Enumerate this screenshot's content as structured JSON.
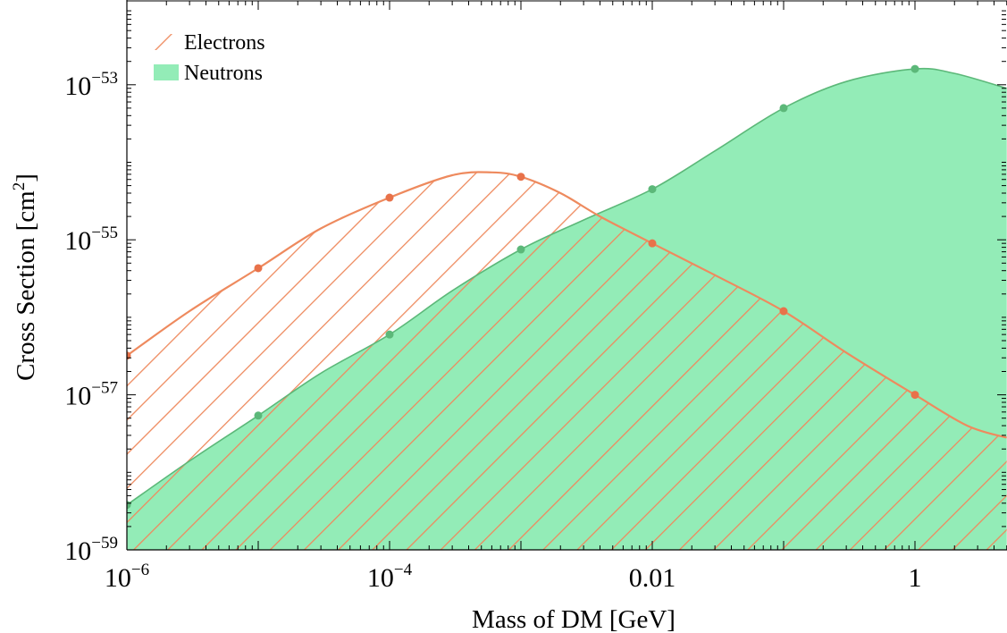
{
  "chart_data": {
    "type": "area",
    "title": "",
    "xlabel": "Mass of DM [GeV]",
    "ylabel_main": "Cross Section [cm",
    "ylabel_sup": "2",
    "ylabel_close": "]",
    "x_scale": "log",
    "y_scale": "log",
    "xlim": [
      1e-06,
      5
    ],
    "ylim": [
      1e-59,
      1e-52
    ],
    "x_ticks": [
      {
        "value": 1e-06,
        "base": "10",
        "exp": "−6"
      },
      {
        "value": 0.0001,
        "base": "10",
        "exp": "−4"
      },
      {
        "value": 0.01,
        "base": "0.01",
        "exp": ""
      },
      {
        "value": 1,
        "base": "1",
        "exp": ""
      }
    ],
    "y_ticks": [
      {
        "value": 1e-59,
        "base": "10",
        "exp": "−59"
      },
      {
        "value": 1e-57,
        "base": "10",
        "exp": "−57"
      },
      {
        "value": 1e-55,
        "base": "10",
        "exp": "−55"
      },
      {
        "value": 1e-53,
        "base": "10",
        "exp": "−53"
      }
    ],
    "grid": false,
    "legend_position": "top-left",
    "series": [
      {
        "name": "Electrons",
        "color": "#ee8a5e",
        "fill": "hatched",
        "points": [
          {
            "x": 1e-06,
            "y": 3.2e-57
          },
          {
            "x": 1e-05,
            "y": 4.3e-56
          },
          {
            "x": 0.0001,
            "y": 3.5e-55
          },
          {
            "x": 0.001,
            "y": 6.5e-55
          },
          {
            "x": 0.01,
            "y": 9e-56
          },
          {
            "x": 0.1,
            "y": 1.2e-56
          },
          {
            "x": 1,
            "y": 1e-57
          }
        ],
        "curve": [
          [
            1e-06,
            3.2e-57
          ],
          [
            3e-06,
            1.2e-56
          ],
          [
            1e-05,
            4.3e-56
          ],
          [
            3e-05,
            1.4e-55
          ],
          [
            0.0001,
            3.5e-55
          ],
          [
            0.0003,
            6.8e-55
          ],
          [
            0.0006,
            7.4e-55
          ],
          [
            0.001,
            6.5e-55
          ],
          [
            0.002,
            4e-55
          ],
          [
            0.004,
            2e-55
          ],
          [
            0.01,
            9e-56
          ],
          [
            0.03,
            3.5e-56
          ],
          [
            0.1,
            1.2e-56
          ],
          [
            0.3,
            3.5e-57
          ],
          [
            1,
            1e-57
          ],
          [
            2.5,
            4e-58
          ],
          [
            5,
            2.8e-58
          ]
        ]
      },
      {
        "name": "Neutrons",
        "color": "#5cb879",
        "fill_color": "#93ecb7",
        "points": [
          {
            "x": 1e-06,
            "y": 3.8e-59
          },
          {
            "x": 1e-05,
            "y": 5.4e-58
          },
          {
            "x": 0.0001,
            "y": 6e-57
          },
          {
            "x": 0.001,
            "y": 7.5e-56
          },
          {
            "x": 0.01,
            "y": 4.5e-55
          },
          {
            "x": 0.1,
            "y": 5e-54
          },
          {
            "x": 1,
            "y": 1.6e-53
          }
        ],
        "curve": [
          [
            1e-06,
            3.8e-59
          ],
          [
            3e-06,
            1.4e-58
          ],
          [
            1e-05,
            5.4e-58
          ],
          [
            3e-05,
            1.9e-57
          ],
          [
            0.0001,
            6e-57
          ],
          [
            0.0003,
            2.2e-56
          ],
          [
            0.001,
            7.5e-56
          ],
          [
            0.003,
            1.8e-55
          ],
          [
            0.01,
            4.5e-55
          ],
          [
            0.03,
            1.4e-54
          ],
          [
            0.1,
            5e-54
          ],
          [
            0.3,
            1.1e-53
          ],
          [
            1,
            1.6e-53
          ],
          [
            2,
            1.4e-53
          ],
          [
            5,
            9e-54
          ]
        ]
      }
    ]
  }
}
